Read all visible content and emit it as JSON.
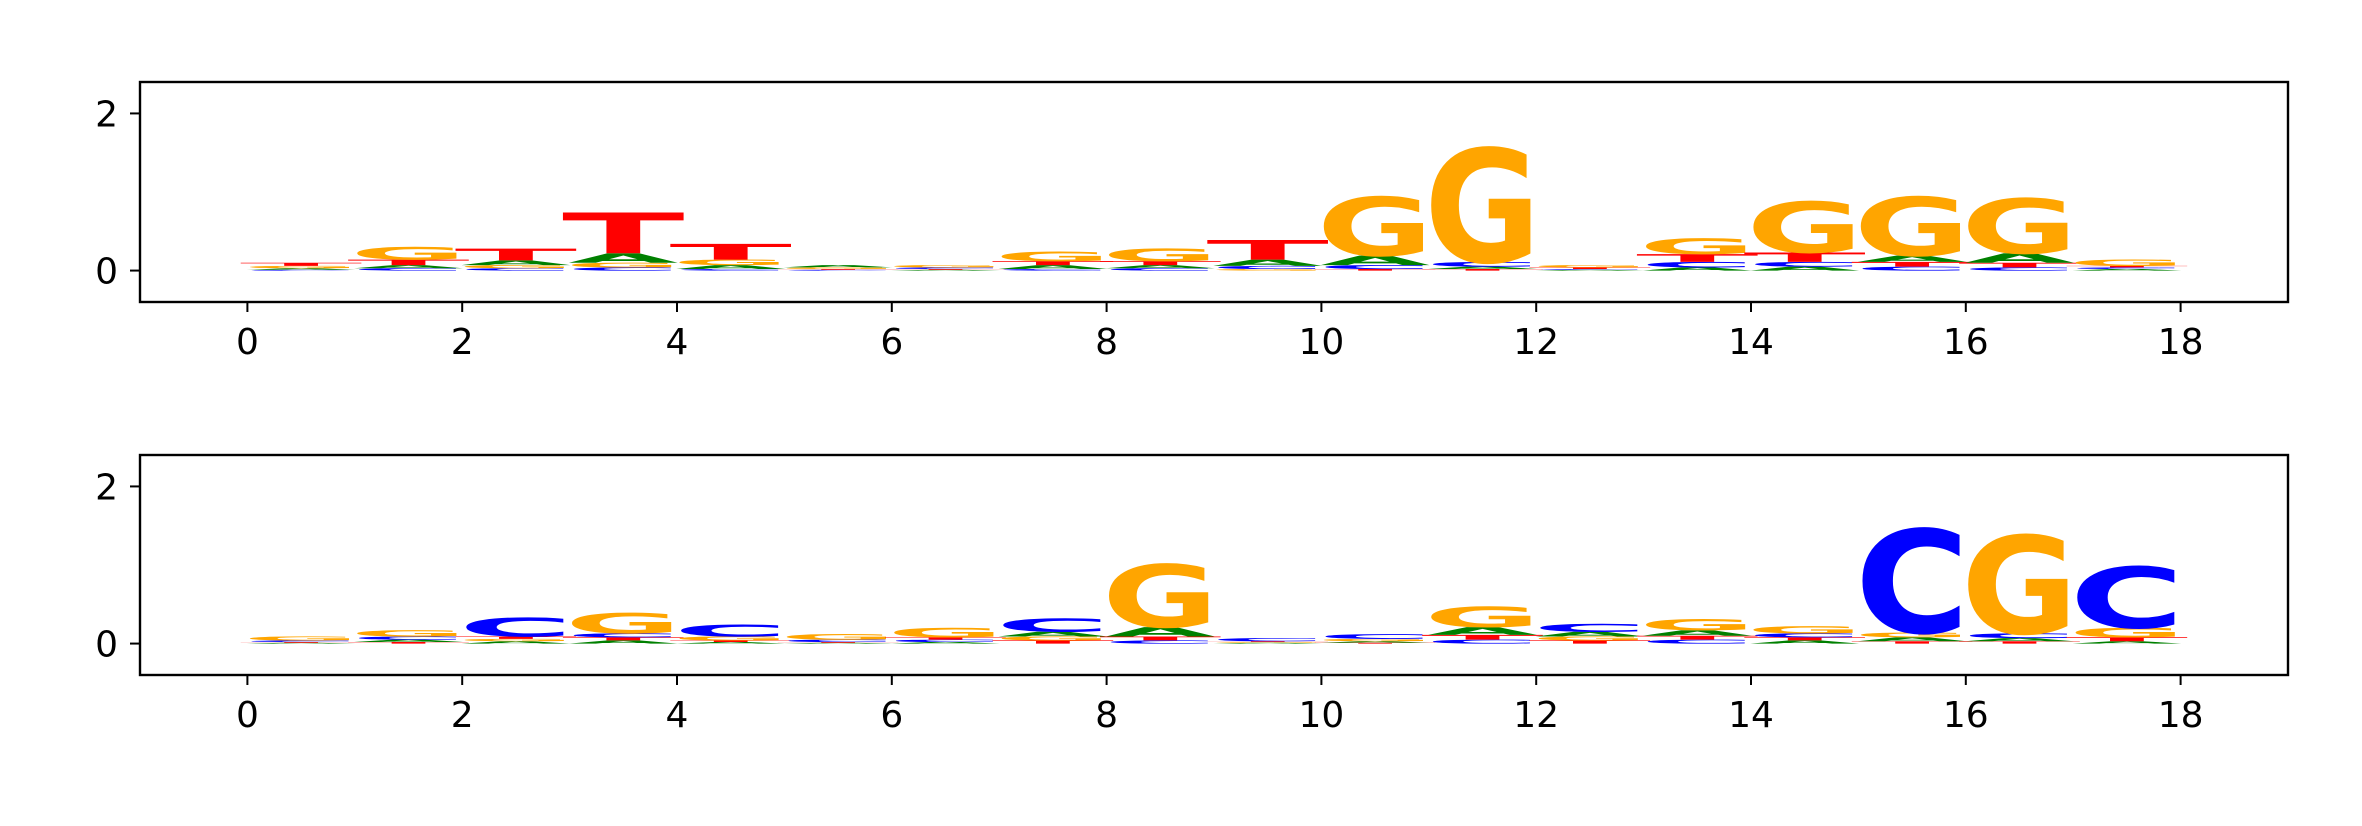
{
  "chart_data": [
    {
      "type": "sequence-logo",
      "title": "",
      "xlabel": "",
      "ylabel": "",
      "xlim": [
        -1,
        19
      ],
      "ylim": [
        -0.4,
        2.4
      ],
      "xticks": [
        0,
        2,
        4,
        6,
        8,
        10,
        12,
        14,
        16,
        18
      ],
      "yticks": [
        0,
        2
      ],
      "grid": false,
      "colors": {
        "A": "#008000",
        "C": "#0000ff",
        "G": "#ffa500",
        "T": "#ff0000"
      },
      "columns": [
        {
          "x": 0.5,
          "letters": {
            "A": 0.02,
            "C": 0.01,
            "G": 0.03,
            "T": 0.04
          }
        },
        {
          "x": 1.5,
          "letters": {
            "A": 0.04,
            "C": 0.03,
            "G": 0.16,
            "T": 0.07
          }
        },
        {
          "x": 2.5,
          "letters": {
            "A": 0.06,
            "C": 0.03,
            "G": 0.04,
            "T": 0.15
          }
        },
        {
          "x": 3.5,
          "letters": {
            "A": 0.12,
            "C": 0.04,
            "G": 0.06,
            "T": 0.52
          }
        },
        {
          "x": 4.5,
          "letters": {
            "A": 0.05,
            "C": 0.02,
            "G": 0.07,
            "T": 0.2
          }
        },
        {
          "x": 5.5,
          "letters": {
            "A": 0.03,
            "C": 0.01,
            "G": 0.02,
            "T": 0.01
          }
        },
        {
          "x": 6.5,
          "letters": {
            "A": 0.01,
            "C": 0.02,
            "G": 0.03,
            "T": 0.01
          }
        },
        {
          "x": 7.5,
          "letters": {
            "A": 0.05,
            "C": 0.02,
            "G": 0.12,
            "T": 0.05
          }
        },
        {
          "x": 8.5,
          "letters": {
            "A": 0.04,
            "C": 0.03,
            "G": 0.16,
            "T": 0.05
          }
        },
        {
          "x": 9.5,
          "letters": {
            "A": 0.08,
            "C": 0.04,
            "G": 0.02,
            "T": 0.25
          }
        },
        {
          "x": 10.5,
          "letters": {
            "A": 0.12,
            "C": 0.05,
            "G": 0.75,
            "T": 0.02
          }
        },
        {
          "x": 11.5,
          "letters": {
            "A": 0.03,
            "C": 0.06,
            "G": 1.45,
            "T": 0.02
          }
        },
        {
          "x": 12.5,
          "letters": {
            "A": 0.01,
            "C": 0.01,
            "G": 0.03,
            "T": 0.02
          }
        },
        {
          "x": 13.5,
          "letters": {
            "A": 0.04,
            "C": 0.07,
            "G": 0.2,
            "T": 0.1
          }
        },
        {
          "x": 14.5,
          "letters": {
            "A": 0.05,
            "C": 0.06,
            "G": 0.65,
            "T": 0.12
          }
        },
        {
          "x": 15.5,
          "letters": {
            "A": 0.08,
            "C": 0.05,
            "G": 0.75,
            "T": 0.06
          }
        },
        {
          "x": 16.5,
          "letters": {
            "A": 0.12,
            "C": 0.04,
            "G": 0.7,
            "T": 0.06
          }
        },
        {
          "x": 17.5,
          "letters": {
            "A": 0.02,
            "C": 0.02,
            "G": 0.08,
            "T": 0.02
          }
        }
      ]
    },
    {
      "type": "sequence-logo",
      "title": "",
      "xlabel": "",
      "ylabel": "",
      "xlim": [
        -1,
        19
      ],
      "ylim": [
        -0.4,
        2.4
      ],
      "xticks": [
        0,
        2,
        4,
        6,
        8,
        10,
        12,
        14,
        16,
        18
      ],
      "yticks": [
        0,
        2
      ],
      "grid": false,
      "colors": {
        "A": "#008000",
        "C": "#0000ff",
        "G": "#ffa500",
        "T": "#ff0000"
      },
      "columns": [
        {
          "x": 0.5,
          "letters": {
            "A": 0.01,
            "C": 0.02,
            "G": 0.05,
            "T": 0.01
          }
        },
        {
          "x": 1.5,
          "letters": {
            "A": 0.03,
            "C": 0.04,
            "G": 0.08,
            "T": 0.02
          }
        },
        {
          "x": 2.5,
          "letters": {
            "A": 0.03,
            "C": 0.24,
            "G": 0.03,
            "T": 0.03
          }
        },
        {
          "x": 3.5,
          "letters": {
            "A": 0.04,
            "C": 0.05,
            "G": 0.26,
            "T": 0.04
          }
        },
        {
          "x": 4.5,
          "letters": {
            "A": 0.02,
            "C": 0.15,
            "G": 0.05,
            "T": 0.02
          }
        },
        {
          "x": 5.5,
          "letters": {
            "A": 0.01,
            "C": 0.03,
            "G": 0.07,
            "T": 0.01
          }
        },
        {
          "x": 6.5,
          "letters": {
            "A": 0.02,
            "C": 0.03,
            "G": 0.12,
            "T": 0.03
          }
        },
        {
          "x": 7.5,
          "letters": {
            "A": 0.06,
            "C": 0.17,
            "G": 0.05,
            "T": 0.04
          }
        },
        {
          "x": 8.5,
          "letters": {
            "A": 0.12,
            "C": 0.04,
            "G": 0.8,
            "T": 0.05
          }
        },
        {
          "x": 9.5,
          "letters": {
            "A": 0.01,
            "C": 0.04,
            "G": 0.01,
            "T": 0.01
          }
        },
        {
          "x": 10.5,
          "letters": {
            "A": 0.02,
            "C": 0.06,
            "G": 0.03,
            "T": 0.01
          }
        },
        {
          "x": 11.5,
          "letters": {
            "A": 0.1,
            "C": 0.05,
            "G": 0.26,
            "T": 0.06
          }
        },
        {
          "x": 12.5,
          "letters": {
            "A": 0.06,
            "C": 0.1,
            "G": 0.05,
            "T": 0.04
          }
        },
        {
          "x": 13.5,
          "letters": {
            "A": 0.07,
            "C": 0.05,
            "G": 0.14,
            "T": 0.05
          }
        },
        {
          "x": 14.5,
          "letters": {
            "A": 0.04,
            "C": 0.05,
            "G": 0.09,
            "T": 0.04
          }
        },
        {
          "x": 15.5,
          "letters": {
            "A": 0.05,
            "C": 1.32,
            "G": 0.06,
            "T": 0.03
          }
        },
        {
          "x": 16.5,
          "letters": {
            "A": 0.04,
            "C": 0.06,
            "G": 1.25,
            "T": 0.03
          }
        },
        {
          "x": 17.5,
          "letters": {
            "A": 0.03,
            "C": 0.78,
            "G": 0.12,
            "T": 0.05
          }
        }
      ]
    }
  ]
}
